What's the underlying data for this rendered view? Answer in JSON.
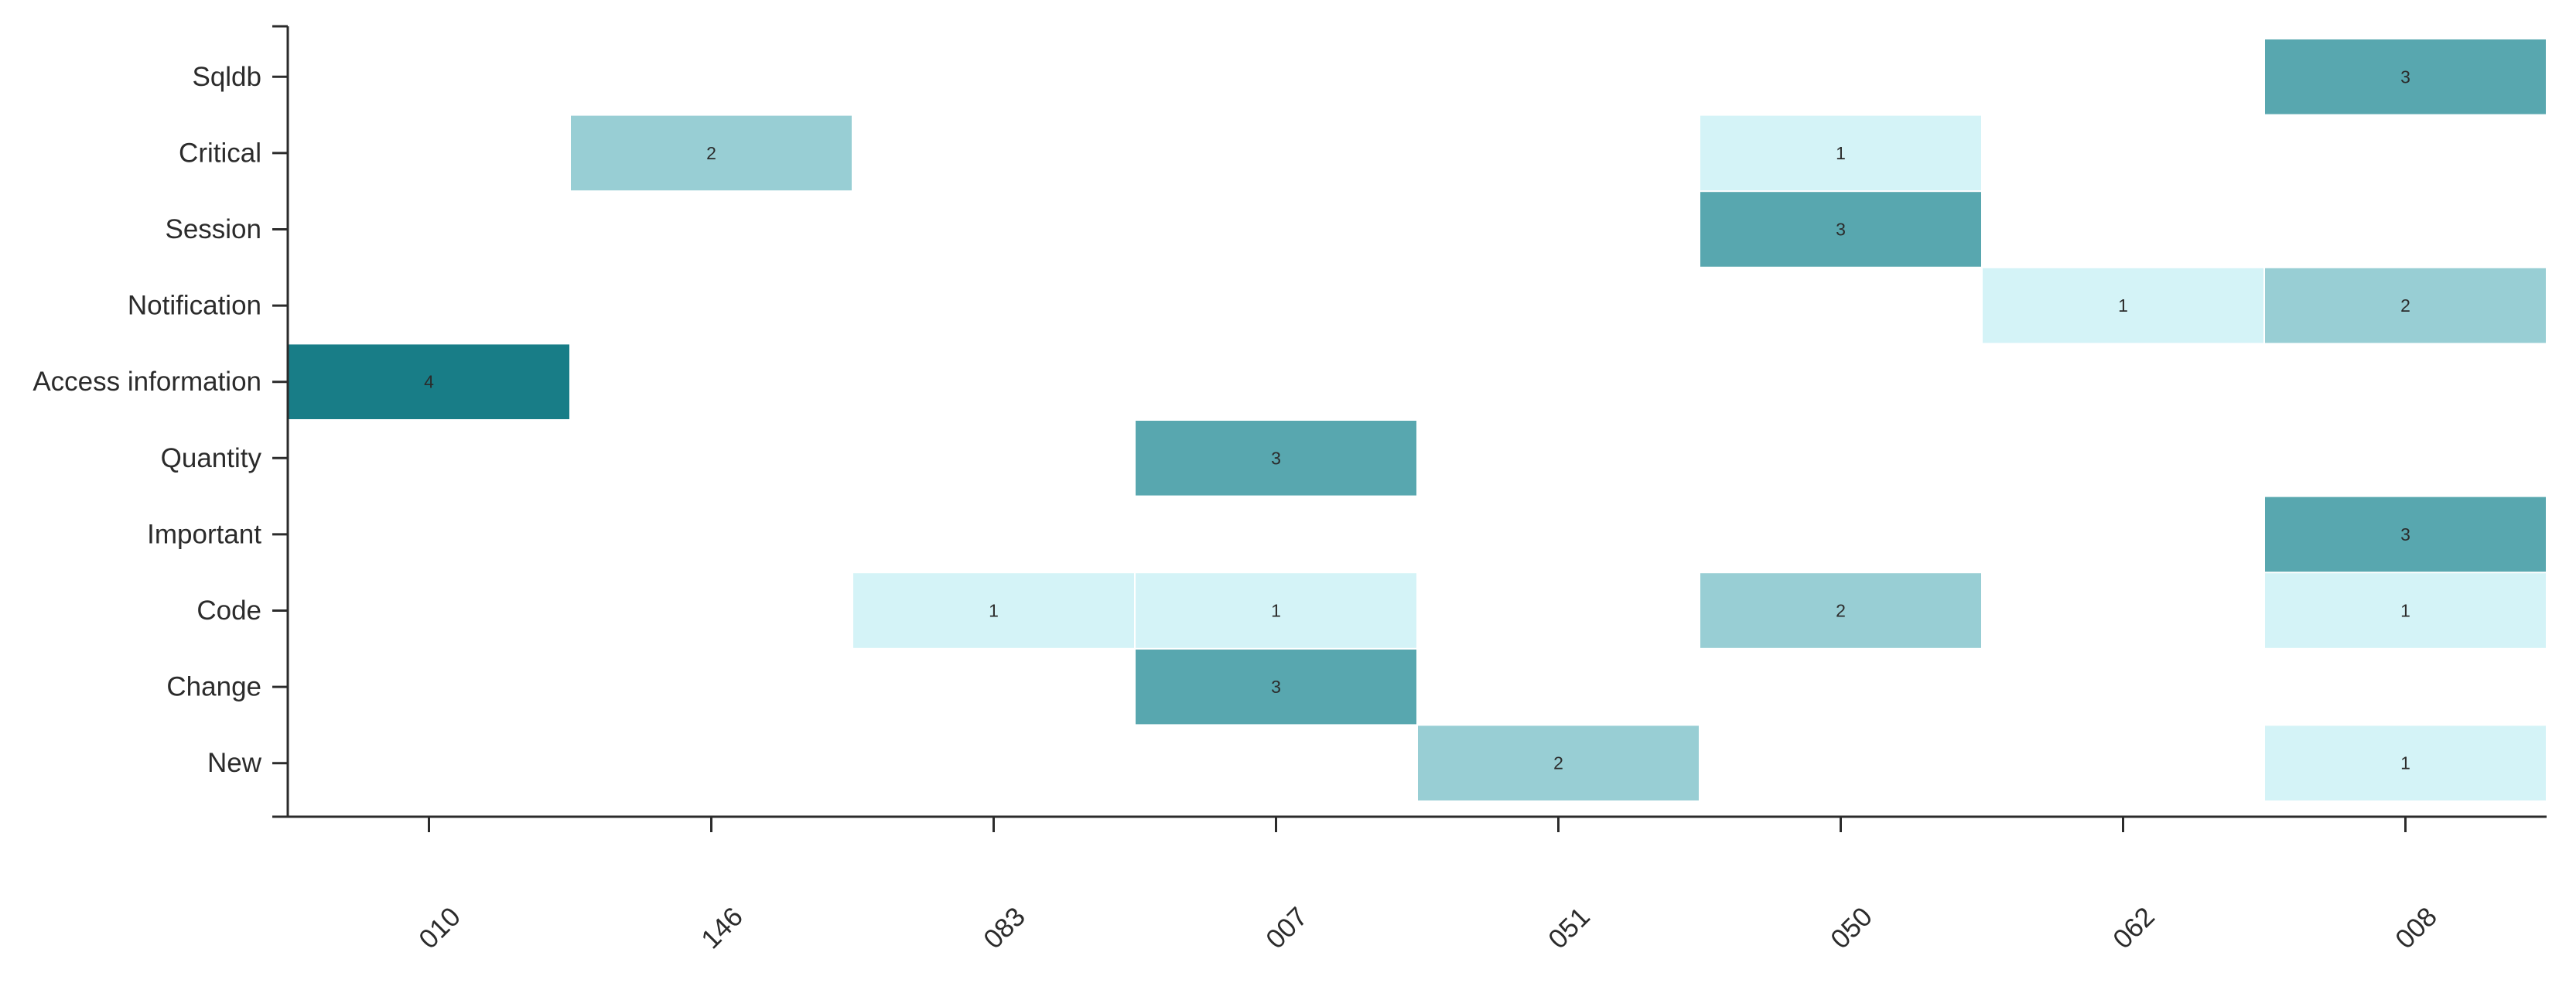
{
  "chart_data": {
    "type": "heatmap",
    "title": "",
    "xlabel": "",
    "ylabel": "",
    "x_categories": [
      "010",
      "146",
      "083",
      "007",
      "051",
      "050",
      "062",
      "008"
    ],
    "y_categories": [
      "Sqldb",
      "Critical",
      "Session",
      "Notification",
      "Access information",
      "Quantity",
      "Important",
      "Code",
      "Change",
      "New"
    ],
    "cells": [
      {
        "x": "008",
        "y": "Sqldb",
        "value": 3
      },
      {
        "x": "146",
        "y": "Critical",
        "value": 2
      },
      {
        "x": "050",
        "y": "Critical",
        "value": 1
      },
      {
        "x": "050",
        "y": "Session",
        "value": 3
      },
      {
        "x": "062",
        "y": "Notification",
        "value": 1
      },
      {
        "x": "008",
        "y": "Notification",
        "value": 2
      },
      {
        "x": "010",
        "y": "Access information",
        "value": 4
      },
      {
        "x": "007",
        "y": "Quantity",
        "value": 3
      },
      {
        "x": "008",
        "y": "Important",
        "value": 3
      },
      {
        "x": "083",
        "y": "Code",
        "value": 1
      },
      {
        "x": "007",
        "y": "Code",
        "value": 1
      },
      {
        "x": "050",
        "y": "Code",
        "value": 2
      },
      {
        "x": "008",
        "y": "Code",
        "value": 1
      },
      {
        "x": "007",
        "y": "Change",
        "value": 3
      },
      {
        "x": "051",
        "y": "New",
        "value": 2
      },
      {
        "x": "008",
        "y": "New",
        "value": 1
      }
    ],
    "color_scale": {
      "1": "#d4f3f7",
      "2": "#98ced4",
      "3": "#58a7af",
      "4": "#187d87"
    },
    "grid": false,
    "legend": "none"
  }
}
